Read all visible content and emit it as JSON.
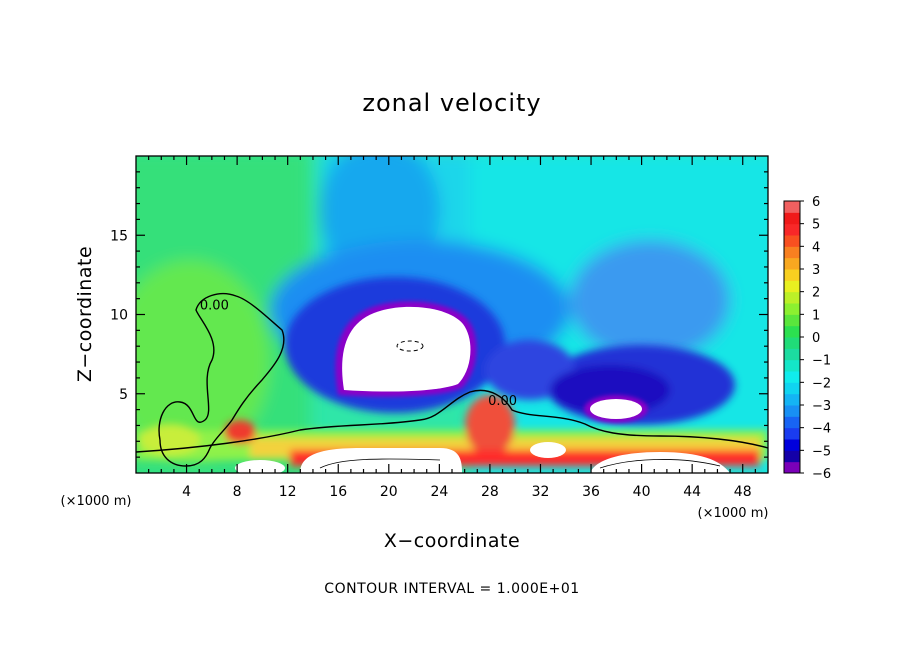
{
  "chart_data": {
    "type": "heatmap",
    "title": "zonal velocity",
    "xlabel": "X−coordinate",
    "ylabel": "Z−coordinate",
    "x_unit": "(×1000 m)",
    "z_unit": "(×1000 m)",
    "xlim": [
      0,
      50
    ],
    "ylim": [
      0,
      20
    ],
    "x_ticks": [
      4,
      8,
      12,
      16,
      20,
      24,
      28,
      32,
      36,
      40,
      44,
      48
    ],
    "y_ticks": [
      5,
      10,
      15
    ],
    "colorbar": {
      "min": -6,
      "max": 6,
      "tick_labels": [
        "6",
        "5",
        "4",
        "3",
        "2",
        "1",
        "0",
        "−1",
        "−2",
        "−3",
        "−4",
        "−5",
        "−6"
      ],
      "tick_values": [
        6,
        5,
        4,
        3,
        2,
        1,
        0,
        -1,
        -2,
        -3,
        -4,
        -5,
        -6
      ]
    },
    "contour_labels": [
      {
        "text": "0.00",
        "x": 6.2,
        "z": 10.3
      },
      {
        "text": "0.00",
        "x": 29.0,
        "z": 4.3
      }
    ],
    "footnote": "CONTOUR INTERVAL = 1.000E+01"
  },
  "colors": {
    "plot_background": "#2fe6a8",
    "saturated_region": "#ffffff",
    "contour": "#000000"
  }
}
